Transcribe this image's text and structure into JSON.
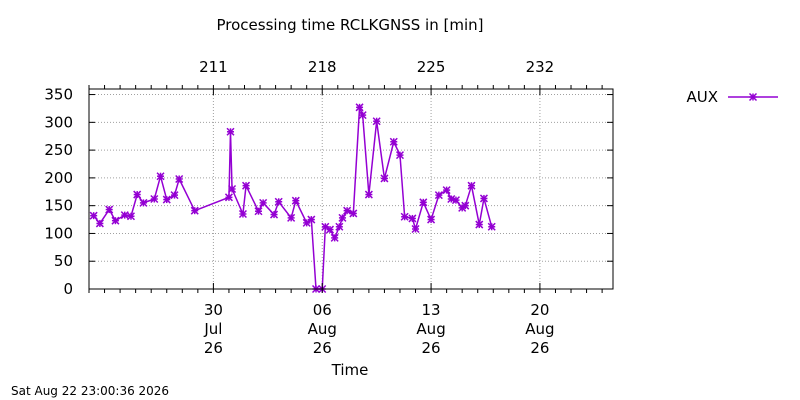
{
  "footer": {
    "timestamp": "Sat Aug 22 23:00:36 2026"
  },
  "chart_data": {
    "type": "line",
    "title": "Processing time RCLKGNSS in [min]",
    "xlabel": "Time",
    "ylabel": "",
    "xlim": [
      203.0,
      236.7
    ],
    "ylim": [
      0,
      360
    ],
    "y_ticks": [
      0,
      50,
      100,
      150,
      200,
      250,
      300,
      350
    ],
    "x_ticks_bottom": [
      {
        "value": 211,
        "lines": [
          "30",
          "Jul",
          "26"
        ]
      },
      {
        "value": 218,
        "lines": [
          "06",
          "Aug",
          "26"
        ]
      },
      {
        "value": 225,
        "lines": [
          "13",
          "Aug",
          "26"
        ]
      },
      {
        "value": 232,
        "lines": [
          "20",
          "Aug",
          "26"
        ]
      }
    ],
    "x_ticks_top": [
      {
        "value": 211,
        "label": "211"
      },
      {
        "value": 218,
        "label": "218"
      },
      {
        "value": 225,
        "label": "225"
      },
      {
        "value": 232,
        "label": "232"
      }
    ],
    "grid": true,
    "legend": "top-right, outside plot",
    "series": [
      {
        "name": "AUX",
        "color": "#9400d3",
        "marker": "star-cross",
        "x": [
          203.3,
          203.7,
          204.3,
          204.7,
          205.3,
          205.7,
          206.1,
          206.5,
          207.2,
          207.6,
          208.0,
          208.5,
          208.8,
          209.8,
          212.0,
          212.1,
          212.2,
          212.9,
          213.1,
          213.9,
          214.2,
          214.9,
          215.2,
          216.0,
          216.3,
          217.0,
          217.3,
          217.6,
          218.0,
          218.2,
          218.5,
          218.8,
          219.1,
          219.3,
          219.6,
          220.0,
          220.4,
          220.6,
          221.0,
          221.5,
          222.0,
          222.6,
          223.0,
          223.3,
          223.8,
          224.0,
          224.5,
          225.0,
          225.5,
          226.0,
          226.3,
          226.6,
          227.0
        ],
        "y": [
          132,
          118,
          143,
          123,
          133,
          131,
          170,
          155,
          162,
          203,
          161,
          169,
          198,
          141,
          165,
          283,
          180,
          135,
          186,
          140,
          155,
          134,
          157,
          128,
          159,
          119,
          125,
          0,
          0,
          112,
          107,
          92,
          112,
          128,
          141,
          136,
          327,
          313,
          170,
          302,
          199,
          265,
          241,
          130,
          127,
          108,
          156,
          125,
          169,
          178,
          162,
          160,
          146
        ]
      }
    ],
    "series_tail": {
      "x": [
        227.2,
        227.6,
        228.1,
        228.4,
        228.9
      ],
      "y": [
        150,
        186,
        116,
        163,
        112
      ]
    }
  }
}
